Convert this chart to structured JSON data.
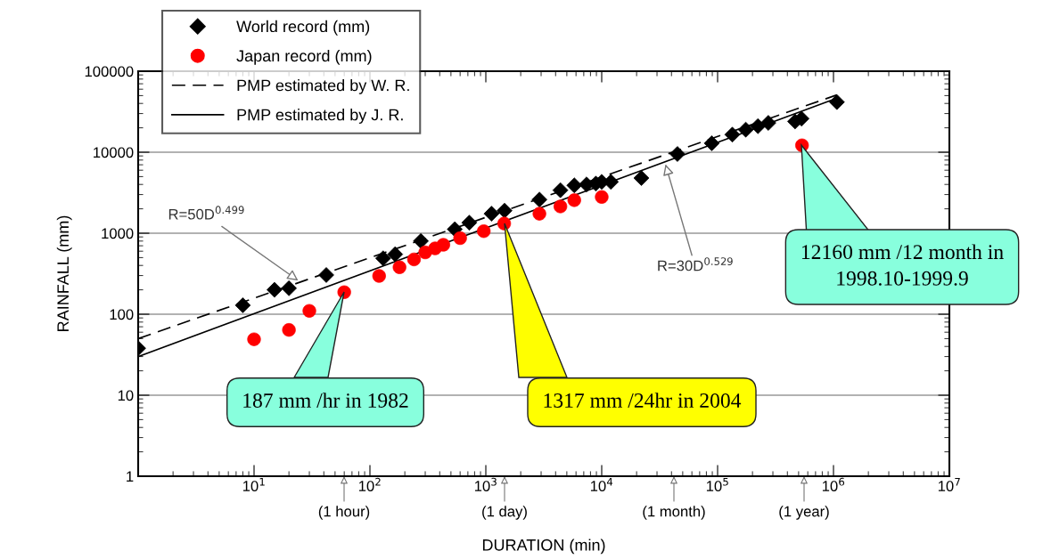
{
  "chart_data": {
    "type": "scatter",
    "xlabel": "DURATION (min)",
    "ylabel": "RAINFALL (mm)",
    "log": "xy",
    "grid": "y",
    "legend": "top left",
    "xlim": [
      1,
      10000000
    ],
    "ylim": [
      1,
      100000
    ],
    "xticks": [
      {
        "value": 10,
        "label": "10$^{1}$"
      },
      {
        "value": 100,
        "label": "10$^{2}$"
      },
      {
        "value": 1000,
        "label": "10$^{3}$"
      },
      {
        "value": 10000,
        "label": "10$^{4}$"
      },
      {
        "value": 100000,
        "label": "10$^{5}$"
      },
      {
        "value": 1000000,
        "label": "10$^{6}$"
      },
      {
        "value": 10000000,
        "label": "10$^{7}$"
      }
    ],
    "yticks": [
      1,
      10,
      100,
      1000,
      10000,
      100000
    ],
    "series": [
      {
        "name": "World record (mm)",
        "type": "scatter",
        "marker": "diamond",
        "color": "#000000",
        "x": [
          1,
          8,
          15,
          20,
          42,
          130,
          165,
          275,
          540,
          720,
          1120,
          1450,
          2900,
          4400,
          5800,
          7400,
          8900,
          10000,
          12000,
          22000,
          45000,
          89000,
          134000,
          175000,
          223000,
          274000,
          466000,
          530000,
          1070000
        ],
        "values": [
          38,
          129,
          200,
          209,
          305,
          490,
          550,
          800,
          1120,
          1350,
          1740,
          1900,
          2600,
          3400,
          3900,
          4000,
          4100,
          4300,
          4300,
          4800,
          9500,
          12900,
          16500,
          19000,
          21000,
          23000,
          24000,
          26000,
          41600
        ]
      },
      {
        "name": "Japan record (mm)",
        "type": "scatter",
        "marker": "circle",
        "color": "#ff0000",
        "x": [
          10,
          20,
          30,
          60,
          120,
          180,
          240,
          300,
          365,
          430,
          600,
          960,
          1440,
          2900,
          4400,
          5800,
          10000,
          535000
        ],
        "values": [
          49,
          64,
          110,
          187,
          297,
          380,
          475,
          580,
          650,
          720,
          870,
          1060,
          1317,
          1740,
          2140,
          2560,
          2800,
          12160
        ]
      },
      {
        "name": "PMP estimated by W. R.",
        "type": "line",
        "line_style": "dashed",
        "marker": "none",
        "color": "#000000",
        "x": [
          1,
          1070000
        ],
        "values": [
          50,
          51000
        ]
      },
      {
        "name": "PMP estimated by J. R.",
        "type": "line",
        "line_style": "solid",
        "marker": "none",
        "color": "#000000",
        "x": [
          1,
          1070000
        ],
        "values": [
          30,
          46400
        ]
      }
    ],
    "annotations": [
      {
        "text": "R=50D$^{0.499}$",
        "x": 25,
        "y": 250
      },
      {
        "text": "R=30D$^{0.529}$",
        "x": 35000,
        "y": 7600
      },
      "187 mm /hr in 1982",
      "1317 mm /24hr in 2004",
      "12160 mm /12 month in\n1998.10-1999.9",
      "(1 hour)",
      "(1 day)",
      "(1 month)",
      "(1 year)"
    ]
  }
}
